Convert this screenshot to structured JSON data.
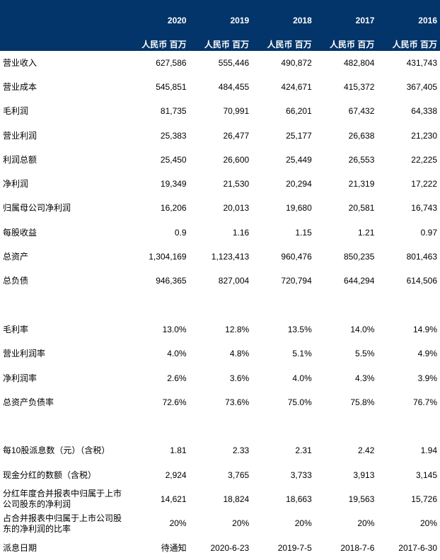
{
  "header": {
    "years": [
      "2020",
      "2019",
      "2018",
      "2017",
      "2016"
    ],
    "unit": "人民币 百万"
  },
  "sections": [
    {
      "rows": [
        {
          "label": "营业收入",
          "values": [
            "627,586",
            "555,446",
            "490,872",
            "482,804",
            "431,743"
          ]
        },
        {
          "label": "营业成本",
          "values": [
            "545,851",
            "484,455",
            "424,671",
            "415,372",
            "367,405"
          ]
        },
        {
          "label": "毛利润",
          "values": [
            "81,735",
            "70,991",
            "66,201",
            "67,432",
            "64,338"
          ]
        },
        {
          "label": "营业利润",
          "values": [
            "25,383",
            "26,477",
            "25,177",
            "26,638",
            "21,230"
          ]
        },
        {
          "label": "利润总额",
          "values": [
            "25,450",
            "26,600",
            "25,449",
            "26,553",
            "22,225"
          ]
        },
        {
          "label": "净利润",
          "values": [
            "19,349",
            "21,530",
            "20,294",
            "21,319",
            "17,222"
          ]
        },
        {
          "label": "归属母公司净利润",
          "values": [
            "16,206",
            "20,013",
            "19,680",
            "20,581",
            "16,743"
          ]
        },
        {
          "label": "每股收益",
          "values": [
            "0.9",
            "1.16",
            "1.15",
            "1.21",
            "0.97"
          ]
        },
        {
          "label": "总资产",
          "values": [
            "1,304,169",
            "1,123,413",
            "960,476",
            "850,235",
            "801,463"
          ]
        },
        {
          "label": "总负债",
          "values": [
            "946,365",
            "827,004",
            "720,794",
            "644,294",
            "614,506"
          ]
        }
      ]
    },
    {
      "rows": [
        {
          "label": "毛利率",
          "values": [
            "13.0%",
            "12.8%",
            "13.5%",
            "14.0%",
            "14.9%"
          ]
        },
        {
          "label": "营业利润率",
          "values": [
            "4.0%",
            "4.8%",
            "5.1%",
            "5.5%",
            "4.9%"
          ]
        },
        {
          "label": "净利润率",
          "values": [
            "2.6%",
            "3.6%",
            "4.0%",
            "4.3%",
            "3.9%"
          ]
        },
        {
          "label": "总资产负债率",
          "values": [
            "72.6%",
            "73.6%",
            "75.0%",
            "75.8%",
            "76.7%"
          ]
        }
      ]
    },
    {
      "rows": [
        {
          "label": "每10股派息数（元）（含税）",
          "values": [
            "1.81",
            "2.33",
            "2.31",
            "2.42",
            "1.94"
          ]
        },
        {
          "label": "现金分红的数额（含税）",
          "values": [
            "2,924",
            "3,765",
            "3,733",
            "3,913",
            "3,145"
          ]
        },
        {
          "label": "分红年度合并报表中归属于上市公司股东的净利润",
          "values": [
            "14,621",
            "18,824",
            "18,663",
            "19,563",
            "15,726"
          ]
        },
        {
          "label": "占合并报表中归属于上市公司股东的净利润的比率",
          "values": [
            "20%",
            "20%",
            "20%",
            "20%",
            "20%"
          ]
        },
        {
          "label": "派息日期",
          "values": [
            "待通知",
            "2020-6-23",
            "2019-7-5",
            "2018-7-6",
            "2017-6-30"
          ]
        }
      ]
    }
  ]
}
